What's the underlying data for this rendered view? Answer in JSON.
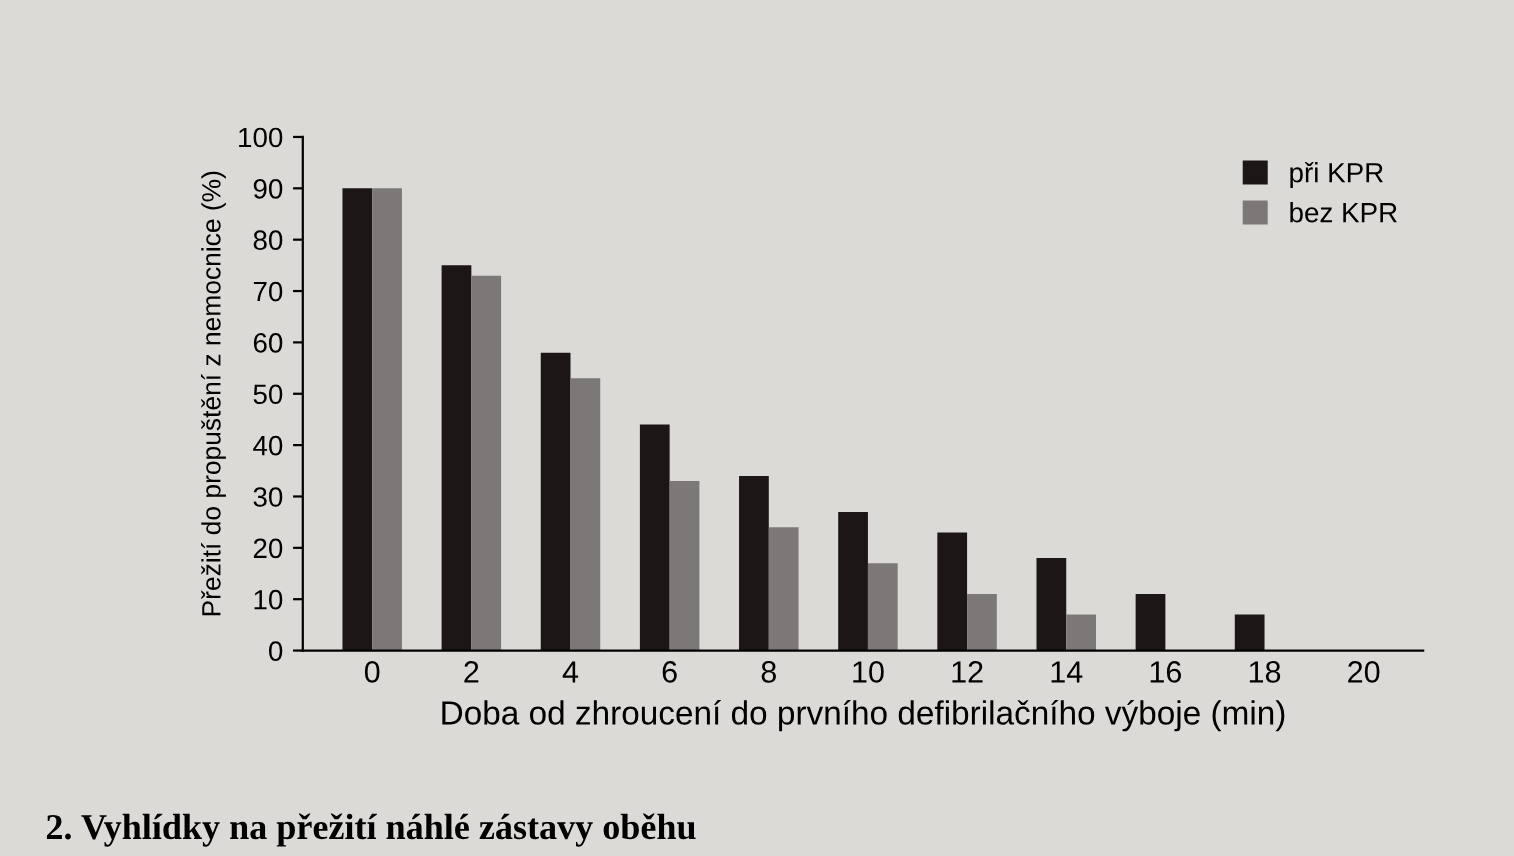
{
  "chart_data": {
    "type": "bar",
    "categories": [
      "0",
      "2",
      "4",
      "6",
      "8",
      "10",
      "12",
      "14",
      "16",
      "18",
      "20"
    ],
    "series": [
      {
        "name": "při KPR",
        "color": "#1c1616",
        "values": [
          90,
          75,
          58,
          44,
          34,
          27,
          23,
          18,
          11,
          7,
          null
        ]
      },
      {
        "name": "bez KPR",
        "color": "#7c7878",
        "values": [
          90,
          73,
          53,
          33,
          24,
          17,
          11,
          7,
          null,
          null,
          null
        ]
      }
    ],
    "xlabel": "Doba od zhroucení do prvního defibrilačního výboje (min)",
    "ylabel": "Přežití do propuštění z nemocnice (%)",
    "ylim": [
      0,
      100
    ],
    "yticks": [
      0,
      10,
      20,
      30,
      40,
      50,
      60,
      70,
      80,
      90,
      100
    ],
    "grid": false,
    "legend": "top right",
    "annotations": [
      "2. Vyhlídky na přežití náhlé zástavy oběhu"
    ]
  }
}
